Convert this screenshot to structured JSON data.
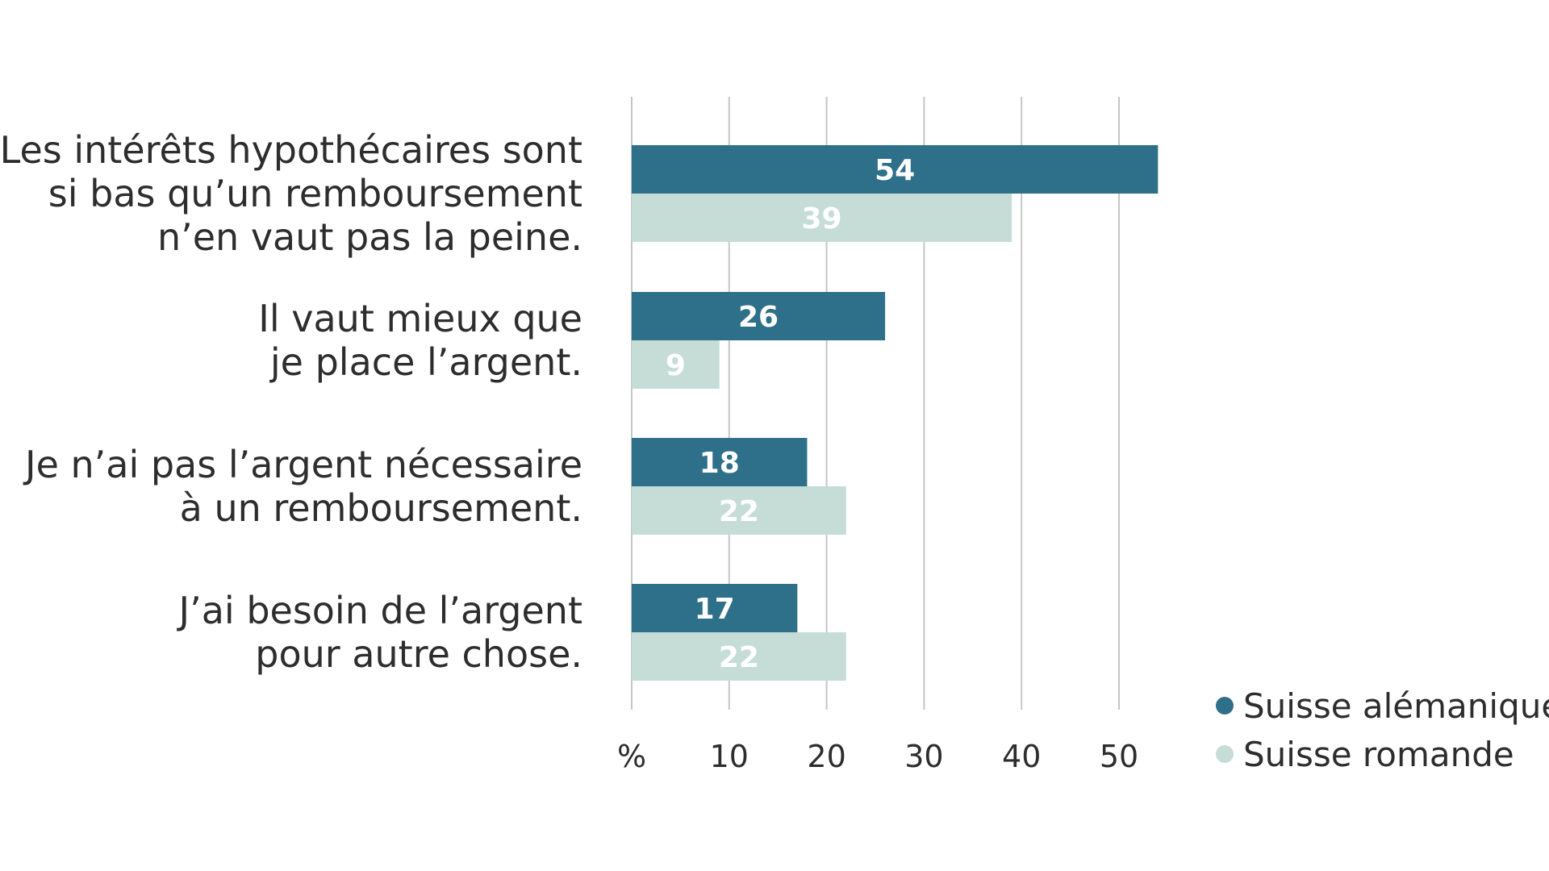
{
  "chart_data": {
    "type": "bar",
    "orientation": "horizontal",
    "categories": [
      [
        "Les intérêts hypothécaires sont",
        "si bas qu’un remboursement",
        "n’en vaut pas la peine."
      ],
      [
        "Il vaut mieux que",
        "je place l’argent."
      ],
      [
        "Je n’ai pas l’argent nécessaire",
        "à un remboursement."
      ],
      [
        "J’ai besoin de l’argent",
        "pour autre chose."
      ]
    ],
    "series": [
      {
        "name": "Suisse alémanique",
        "values": [
          54,
          26,
          18,
          17
        ],
        "color": "#2e6f89"
      },
      {
        "name": "Suisse romande",
        "values": [
          39,
          9,
          22,
          22
        ],
        "color": "#c6ddd7"
      }
    ],
    "x_ticks": [
      "%",
      "10",
      "20",
      "30",
      "40",
      "50"
    ],
    "xlim": [
      0,
      55
    ],
    "grid": true,
    "legend": "bottom-right",
    "data_labels": true
  }
}
